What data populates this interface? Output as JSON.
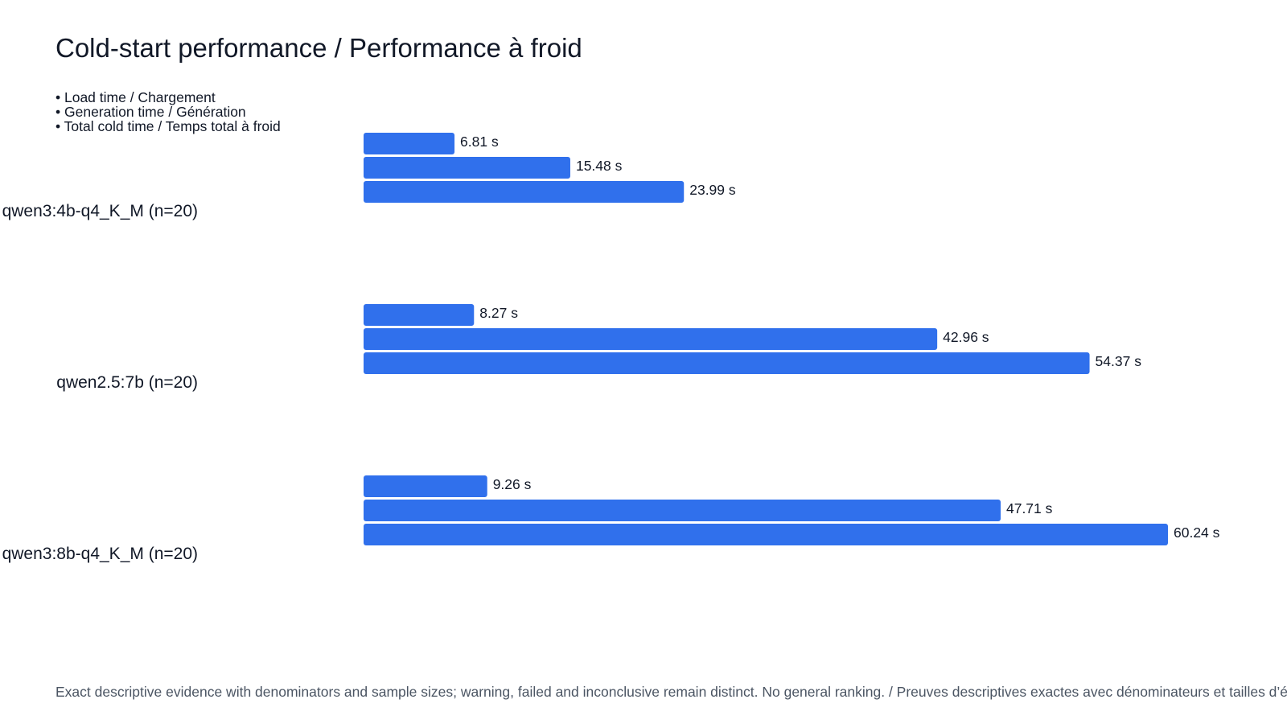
{
  "chart_data": {
    "type": "bar",
    "orientation": "horizontal",
    "title": "Cold-start performance / Performance à froid",
    "legend": {
      "placement": "top-left",
      "entries": [
        "• Load time / Chargement",
        "• Generation time / Génération",
        "• Total cold time / Temps total à froid"
      ]
    },
    "categories": [
      "qwen3:4b-q4_K_M (n=20)",
      "qwen2.5:7b (n=20)",
      "qwen3:8b-q4_K_M (n=20)"
    ],
    "series": [
      {
        "name": "Load time / Chargement",
        "values": [
          6.81,
          8.27,
          9.26
        ],
        "labels": [
          "6.81 s",
          "8.27 s",
          "9.26 s"
        ]
      },
      {
        "name": "Generation time / Génération",
        "values": [
          15.48,
          42.96,
          47.71
        ],
        "labels": [
          "15.48 s",
          "42.96 s",
          "47.71 s"
        ]
      },
      {
        "name": "Total cold time / Temps total à froid",
        "values": [
          23.99,
          54.37,
          60.24
        ],
        "labels": [
          "23.99 s",
          "54.37 s",
          "60.24 s"
        ]
      }
    ],
    "unit": "s",
    "xlim": [
      0,
      60.24
    ],
    "grid": false,
    "bar_color": "#3070ec",
    "footnote": "Exact descriptive evidence with denominators and sample sizes; warning, failed and inconclusive remain distinct. No general ranking. / Preuves descriptives exactes avec dénominateurs et tailles d’échantillon ; avertissement, échec et non concluant restent distincts. Aucun classement général."
  }
}
